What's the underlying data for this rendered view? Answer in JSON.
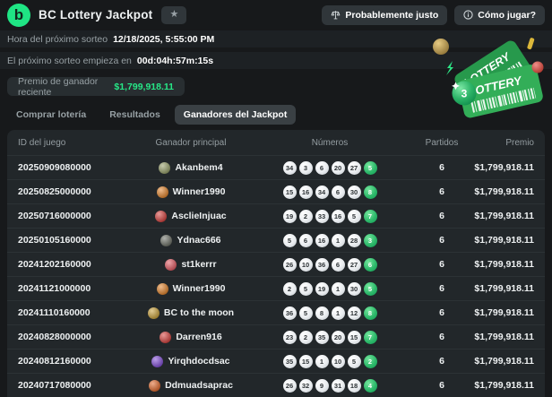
{
  "colors": {
    "accent": "#26e887",
    "ticket_green": "#33ae58"
  },
  "header": {
    "title": "BC Lottery Jackpot",
    "fair_button": "Probablemente justo",
    "how_button": "Cómo jugar?"
  },
  "info": {
    "draw_time_label": "Hora del próximo sorteo",
    "draw_time_value": "12/18/2025, 5:55:00 PM",
    "countdown_label": "El próximo sorteo empieza en",
    "countdown_value": "00d:04h:57m:15s",
    "recent_prize_label": "Premio de ganador reciente",
    "recent_prize_value": "$1,799,918.11"
  },
  "tabs": [
    {
      "label": "Comprar lotería",
      "active": false
    },
    {
      "label": "Resultados",
      "active": false
    },
    {
      "label": "Ganadores del Jackpot",
      "active": true
    }
  ],
  "table": {
    "headers": [
      "ID del juego",
      "Ganador principal",
      "Números",
      "Partidos",
      "Premio"
    ],
    "rows": [
      {
        "id": "20250909080000",
        "winner": "Akanbem4",
        "avatar_color": "#97a06a",
        "numbers": [
          34,
          3,
          6,
          20,
          27
        ],
        "bonus": 5,
        "matches": "6",
        "prize": "$1,799,918.11"
      },
      {
        "id": "20250825000000",
        "winner": "Winner1990",
        "avatar_color": "#e2862f",
        "numbers": [
          15,
          16,
          34,
          6,
          30
        ],
        "bonus": 8,
        "matches": "6",
        "prize": "$1,799,918.11"
      },
      {
        "id": "20250716000000",
        "winner": "AsclieInjuac",
        "avatar_color": "#d64440",
        "numbers": [
          19,
          2,
          33,
          16,
          5
        ],
        "bonus": 7,
        "matches": "6",
        "prize": "$1,799,918.11"
      },
      {
        "id": "20250105160000",
        "winner": "Ydnac666",
        "avatar_color": "#6e7268",
        "numbers": [
          5,
          6,
          16,
          1,
          28
        ],
        "bonus": 3,
        "matches": "6",
        "prize": "$1,799,918.11"
      },
      {
        "id": "20241202160000",
        "winner": "st1kerrr",
        "avatar_color": "#e25c64",
        "numbers": [
          26,
          10,
          36,
          6,
          27
        ],
        "bonus": 6,
        "matches": "6",
        "prize": "$1,799,918.11"
      },
      {
        "id": "20241121000000",
        "winner": "Winner1990",
        "avatar_color": "#e2862f",
        "numbers": [
          2,
          5,
          19,
          1,
          30
        ],
        "bonus": 5,
        "matches": "6",
        "prize": "$1,799,918.11"
      },
      {
        "id": "20241110160000",
        "winner": "BC to the moon",
        "avatar_color": "#c9a23c",
        "numbers": [
          36,
          5,
          8,
          1,
          12
        ],
        "bonus": 8,
        "matches": "6",
        "prize": "$1,799,918.11"
      },
      {
        "id": "20240828000000",
        "winner": "Darren916",
        "avatar_color": "#d64440",
        "numbers": [
          23,
          2,
          35,
          20,
          15
        ],
        "bonus": 7,
        "matches": "6",
        "prize": "$1,799,918.11"
      },
      {
        "id": "20240812160000",
        "winner": "Yirqhdocdsac",
        "avatar_color": "#8450d8",
        "numbers": [
          35,
          15,
          1,
          10,
          5
        ],
        "bonus": 2,
        "matches": "6",
        "prize": "$1,799,918.11"
      },
      {
        "id": "20240717080000",
        "winner": "Ddmuadsaprac",
        "avatar_color": "#e06a2e",
        "numbers": [
          26,
          32,
          9,
          31,
          18
        ],
        "bonus": 4,
        "matches": "6",
        "prize": "$1,799,918.11"
      }
    ]
  },
  "illustration": {
    "ticket_text_back": "LOTTERY",
    "ticket_text_front": "LOTTERY",
    "ball_number": "3"
  }
}
